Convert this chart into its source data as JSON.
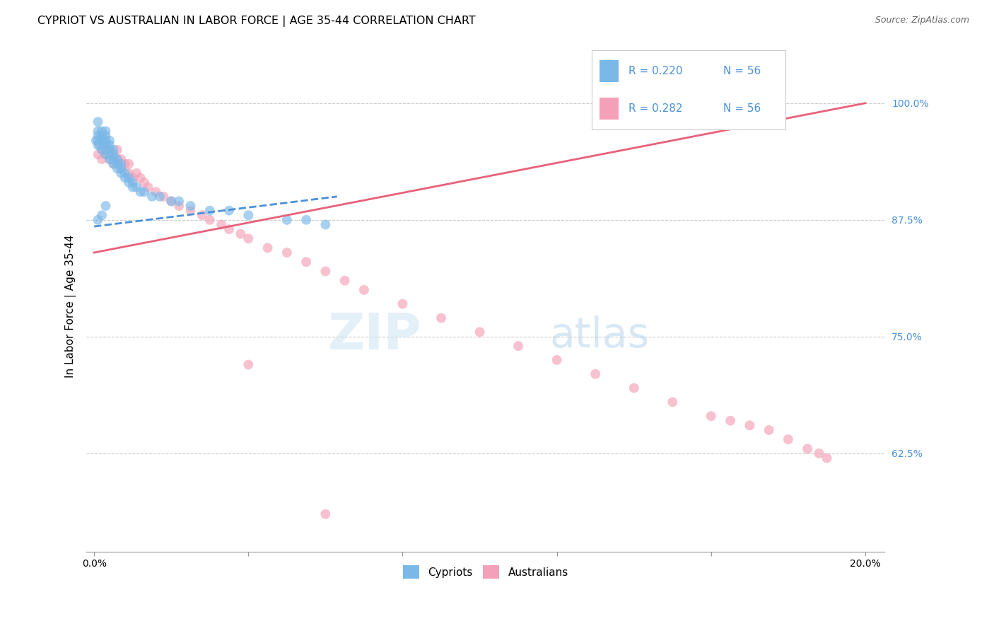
{
  "title": "CYPRIOT VS AUSTRALIAN IN LABOR FORCE | AGE 35-44 CORRELATION CHART",
  "source": "Source: ZipAtlas.com",
  "ylabel": "In Labor Force | Age 35-44",
  "xlim": [
    -0.002,
    0.205
  ],
  "ylim": [
    0.52,
    1.045
  ],
  "xticks": [
    0.0,
    0.04,
    0.08,
    0.12,
    0.16,
    0.2
  ],
  "xticklabels": [
    "0.0%",
    "",
    "",
    "",
    "",
    "20.0%"
  ],
  "ytick_positions": [
    0.625,
    0.75,
    0.875,
    1.0
  ],
  "ytick_labels": [
    "62.5%",
    "75.0%",
    "87.5%",
    "100.0%"
  ],
  "blue_color": "#7ab8e8",
  "pink_color": "#f4a0b8",
  "blue_line_color": "#4a90d9",
  "pink_line_color": "#e8607a",
  "legend_label_blue": "Cypriots",
  "legend_label_pink": "Australians",
  "watermark_zip": "ZIP",
  "watermark_atlas": "atlas",
  "blue_scatter_x": [
    0.0005,
    0.001,
    0.001,
    0.001,
    0.001,
    0.001,
    0.0015,
    0.002,
    0.002,
    0.002,
    0.002,
    0.002,
    0.003,
    0.003,
    0.003,
    0.003,
    0.003,
    0.003,
    0.004,
    0.004,
    0.004,
    0.004,
    0.004,
    0.005,
    0.005,
    0.005,
    0.005,
    0.006,
    0.006,
    0.006,
    0.007,
    0.007,
    0.007,
    0.008,
    0.008,
    0.009,
    0.009,
    0.01,
    0.01,
    0.011,
    0.012,
    0.013,
    0.015,
    0.017,
    0.02,
    0.022,
    0.025,
    0.03,
    0.035,
    0.04,
    0.05,
    0.055,
    0.06,
    0.002,
    0.001,
    0.003
  ],
  "blue_scatter_y": [
    0.96,
    0.955,
    0.96,
    0.965,
    0.97,
    0.98,
    0.955,
    0.96,
    0.95,
    0.96,
    0.965,
    0.97,
    0.945,
    0.95,
    0.955,
    0.96,
    0.965,
    0.97,
    0.94,
    0.945,
    0.95,
    0.955,
    0.96,
    0.935,
    0.94,
    0.945,
    0.95,
    0.93,
    0.935,
    0.94,
    0.925,
    0.93,
    0.935,
    0.92,
    0.925,
    0.915,
    0.92,
    0.91,
    0.915,
    0.91,
    0.905,
    0.905,
    0.9,
    0.9,
    0.895,
    0.895,
    0.89,
    0.885,
    0.885,
    0.88,
    0.875,
    0.875,
    0.87,
    0.88,
    0.875,
    0.89
  ],
  "pink_scatter_x": [
    0.001,
    0.002,
    0.002,
    0.003,
    0.003,
    0.004,
    0.004,
    0.005,
    0.005,
    0.006,
    0.006,
    0.007,
    0.007,
    0.008,
    0.009,
    0.009,
    0.01,
    0.011,
    0.012,
    0.013,
    0.014,
    0.016,
    0.018,
    0.02,
    0.022,
    0.025,
    0.028,
    0.03,
    0.033,
    0.035,
    0.038,
    0.04,
    0.045,
    0.05,
    0.055,
    0.06,
    0.065,
    0.07,
    0.08,
    0.09,
    0.1,
    0.11,
    0.12,
    0.13,
    0.14,
    0.15,
    0.16,
    0.165,
    0.17,
    0.175,
    0.18,
    0.185,
    0.188,
    0.19,
    0.04,
    0.06
  ],
  "pink_scatter_y": [
    0.945,
    0.95,
    0.94,
    0.955,
    0.945,
    0.94,
    0.95,
    0.935,
    0.945,
    0.94,
    0.95,
    0.93,
    0.94,
    0.935,
    0.925,
    0.935,
    0.92,
    0.925,
    0.92,
    0.915,
    0.91,
    0.905,
    0.9,
    0.895,
    0.89,
    0.885,
    0.88,
    0.875,
    0.87,
    0.865,
    0.86,
    0.855,
    0.845,
    0.84,
    0.83,
    0.82,
    0.81,
    0.8,
    0.785,
    0.77,
    0.755,
    0.74,
    0.725,
    0.71,
    0.695,
    0.68,
    0.665,
    0.66,
    0.655,
    0.65,
    0.64,
    0.63,
    0.625,
    0.62,
    0.72,
    0.56
  ],
  "blue_line_x": [
    0.0,
    0.063
  ],
  "blue_line_y": [
    0.868,
    0.9
  ],
  "pink_line_x": [
    0.0,
    0.2
  ],
  "pink_line_y": [
    0.84,
    1.0
  ],
  "title_fontsize": 11.5,
  "source_fontsize": 9,
  "axis_label_fontsize": 11,
  "tick_fontsize": 10,
  "marker_size": 10
}
